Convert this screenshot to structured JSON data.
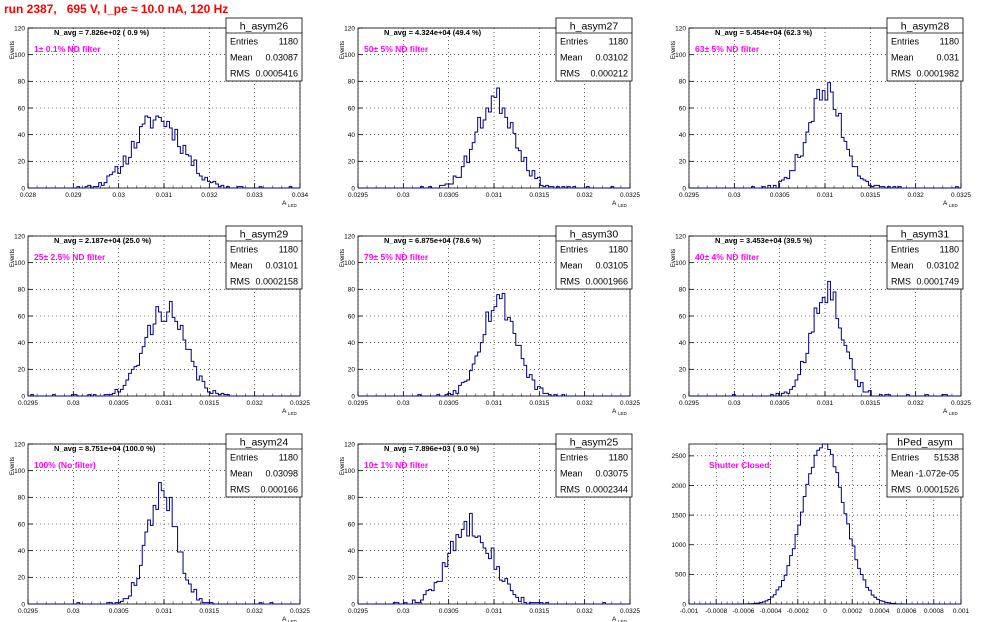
{
  "page_title": "run 2387,   695 V, I_pe ≈ 10.0 nA, 120 Hz",
  "colors": {
    "histogram_line": "#000080",
    "axis": "#000000",
    "grid": "#000000",
    "annotation_magenta": "#ff00ff",
    "title_red": "#ff0000",
    "background": "#ffffff"
  },
  "stat_labels": {
    "entries": "Entries",
    "mean": "Mean",
    "rms": "RMS"
  },
  "chart_data": [
    {
      "type": "histogram",
      "name": "h_asym26",
      "stats": {
        "entries": "1180",
        "mean": "0.03087",
        "rms": "0.0005416"
      },
      "navg_text": "N_avg = 7.826e+02 ( 0.9 %)",
      "filter_text": "1± 0.1% ND filter",
      "xlim": [
        0.028,
        0.034
      ],
      "ylim": [
        0,
        120
      ],
      "xticks": [
        "0.028",
        "0.029",
        "0.03",
        "0.031",
        "0.032",
        "0.033",
        "0.034"
      ],
      "yticks": [
        "0",
        "20",
        "40",
        "60",
        "80",
        "100",
        "120"
      ],
      "xlabel": "A",
      "xlabel_sub": "LED",
      "ylabel": "Events",
      "dist": {
        "mu": 0.03087,
        "sigma": 0.0005416,
        "entries": 1180,
        "nbins": 100,
        "seed": 11
      }
    },
    {
      "type": "histogram",
      "name": "h_asym27",
      "stats": {
        "entries": "1180",
        "mean": "0.03102",
        "rms": "0.000212"
      },
      "navg_text": "N_avg = 4.324e+04 (49.4 %)",
      "filter_text": "50± 5% ND filter",
      "xlim": [
        0.0295,
        0.0325
      ],
      "ylim": [
        0,
        120
      ],
      "xticks": [
        "0.0295",
        "0.03",
        "0.0305",
        "0.031",
        "0.0315",
        "0.032",
        "0.0325"
      ],
      "yticks": [
        "0",
        "20",
        "40",
        "60",
        "80",
        "100",
        "120"
      ],
      "xlabel": "A",
      "xlabel_sub": "LED",
      "ylabel": "Events",
      "dist": {
        "mu": 0.03102,
        "sigma": 0.000212,
        "entries": 1180,
        "nbins": 100,
        "seed": 23
      }
    },
    {
      "type": "histogram",
      "name": "h_asym28",
      "stats": {
        "entries": "1180",
        "mean": "0.031",
        "rms": "0.0001982"
      },
      "navg_text": "N_avg = 5.454e+04 (62.3 %)",
      "filter_text": "63± 5% ND filter",
      "xlim": [
        0.0295,
        0.0325
      ],
      "ylim": [
        0,
        120
      ],
      "xticks": [
        "0.0295",
        "0.03",
        "0.0305",
        "0.031",
        "0.0315",
        "0.032",
        "0.0325"
      ],
      "yticks": [
        "0",
        "20",
        "40",
        "60",
        "80",
        "100",
        "120"
      ],
      "xlabel": "A",
      "xlabel_sub": "LED",
      "ylabel": "Events",
      "dist": {
        "mu": 0.031,
        "sigma": 0.0001982,
        "entries": 1180,
        "nbins": 100,
        "seed": 37
      }
    },
    {
      "type": "histogram",
      "name": "h_asym29",
      "stats": {
        "entries": "1180",
        "mean": "0.03101",
        "rms": "0.0002158"
      },
      "navg_text": "N_avg = 2.187e+04 (25.0 %)",
      "filter_text": "25± 2.5% ND filter",
      "xlim": [
        0.0295,
        0.0325
      ],
      "ylim": [
        0,
        120
      ],
      "xticks": [
        "0.0295",
        "0.03",
        "0.0305",
        "0.031",
        "0.0315",
        "0.032",
        "0.0325"
      ],
      "yticks": [
        "0",
        "20",
        "40",
        "60",
        "80",
        "100",
        "120"
      ],
      "xlabel": "A",
      "xlabel_sub": "LED",
      "ylabel": "Events",
      "dist": {
        "mu": 0.03101,
        "sigma": 0.0002158,
        "entries": 1180,
        "nbins": 100,
        "seed": 41
      }
    },
    {
      "type": "histogram",
      "name": "h_asym30",
      "stats": {
        "entries": "1180",
        "mean": "0.03105",
        "rms": "0.0001966"
      },
      "navg_text": "N_avg = 6.875e+04 (78.6 %)",
      "filter_text": "79± 5% ND filter",
      "xlim": [
        0.0295,
        0.0325
      ],
      "ylim": [
        0,
        120
      ],
      "xticks": [
        "0.0295",
        "0.03",
        "0.0305",
        "0.031",
        "0.0315",
        "0.032",
        "0.0325"
      ],
      "yticks": [
        "0",
        "20",
        "40",
        "60",
        "80",
        "100",
        "120"
      ],
      "xlabel": "A",
      "xlabel_sub": "LED",
      "ylabel": "Events",
      "dist": {
        "mu": 0.03105,
        "sigma": 0.0001966,
        "entries": 1180,
        "nbins": 100,
        "seed": 53
      }
    },
    {
      "type": "histogram",
      "name": "h_asym31",
      "stats": {
        "entries": "1180",
        "mean": "0.03102",
        "rms": "0.0001749"
      },
      "navg_text": "N_avg = 3.453e+04 (39.5 %)",
      "filter_text": "40± 4% ND filter",
      "xlim": [
        0.0295,
        0.0325
      ],
      "ylim": [
        0,
        120
      ],
      "xticks": [
        "0.0295",
        "0.03",
        "0.0305",
        "0.031",
        "0.0315",
        "0.032",
        "0.0325"
      ],
      "yticks": [
        "0",
        "20",
        "40",
        "60",
        "80",
        "100",
        "120"
      ],
      "xlabel": "A",
      "xlabel_sub": "LED",
      "ylabel": "Events",
      "dist": {
        "mu": 0.03102,
        "sigma": 0.0001749,
        "entries": 1180,
        "nbins": 100,
        "seed": 67
      }
    },
    {
      "type": "histogram",
      "name": "h_asym24",
      "stats": {
        "entries": "1180",
        "mean": "0.03098",
        "rms": "0.000166"
      },
      "navg_text": "N_avg = 8.751e+04 (100.0 %)",
      "filter_text": "100% (No filter)",
      "xlim": [
        0.0295,
        0.0325
      ],
      "ylim": [
        0,
        120
      ],
      "xticks": [
        "0.0295",
        "0.03",
        "0.0305",
        "0.031",
        "0.0315",
        "0.032",
        "0.0325"
      ],
      "yticks": [
        "0",
        "20",
        "40",
        "60",
        "80",
        "100",
        "120"
      ],
      "xlabel": "A",
      "xlabel_sub": "LED",
      "ylabel": "Events",
      "dist": {
        "mu": 0.03098,
        "sigma": 0.000166,
        "entries": 1180,
        "nbins": 100,
        "seed": 79
      }
    },
    {
      "type": "histogram",
      "name": "h_asym25",
      "stats": {
        "entries": "1180",
        "mean": "0.03075",
        "rms": "0.0002344"
      },
      "navg_text": "N_avg = 7.896e+03 ( 9.0 %)",
      "filter_text": "10± 1% ND filter",
      "xlim": [
        0.0295,
        0.0325
      ],
      "ylim": [
        0,
        120
      ],
      "xticks": [
        "0.0295",
        "0.03",
        "0.0305",
        "0.031",
        "0.0315",
        "0.032",
        "0.0325"
      ],
      "yticks": [
        "0",
        "20",
        "40",
        "60",
        "80",
        "100",
        "120"
      ],
      "xlabel": "A",
      "xlabel_sub": "LED",
      "ylabel": "Events",
      "dist": {
        "mu": 0.03075,
        "sigma": 0.0002344,
        "entries": 1180,
        "nbins": 100,
        "seed": 83
      }
    },
    {
      "type": "histogram",
      "name": "hPed_asym",
      "stats": {
        "entries": "51538",
        "mean": "-1.072e-05",
        "rms": "0.0001526"
      },
      "navg_text": "",
      "filter_text": "Shutter Closed",
      "xlim": [
        -0.001,
        0.001
      ],
      "ylim": [
        0,
        2700
      ],
      "xticks": [
        "-0.001",
        "-0.0008",
        "-0.0006",
        "-0.0004",
        "-0.0002",
        "0",
        "0.0002",
        "0.0004",
        "0.0006",
        "0.0008",
        "0.001"
      ],
      "yticks": [
        "0",
        "500",
        "1000",
        "1500",
        "2000",
        "2500"
      ],
      "xlabel": "",
      "xlabel_sub": "",
      "ylabel": "",
      "dist": {
        "mu": -1.072e-05,
        "sigma": 0.0001526,
        "entries": 51538,
        "nbins": 100,
        "seed": 97
      }
    }
  ]
}
